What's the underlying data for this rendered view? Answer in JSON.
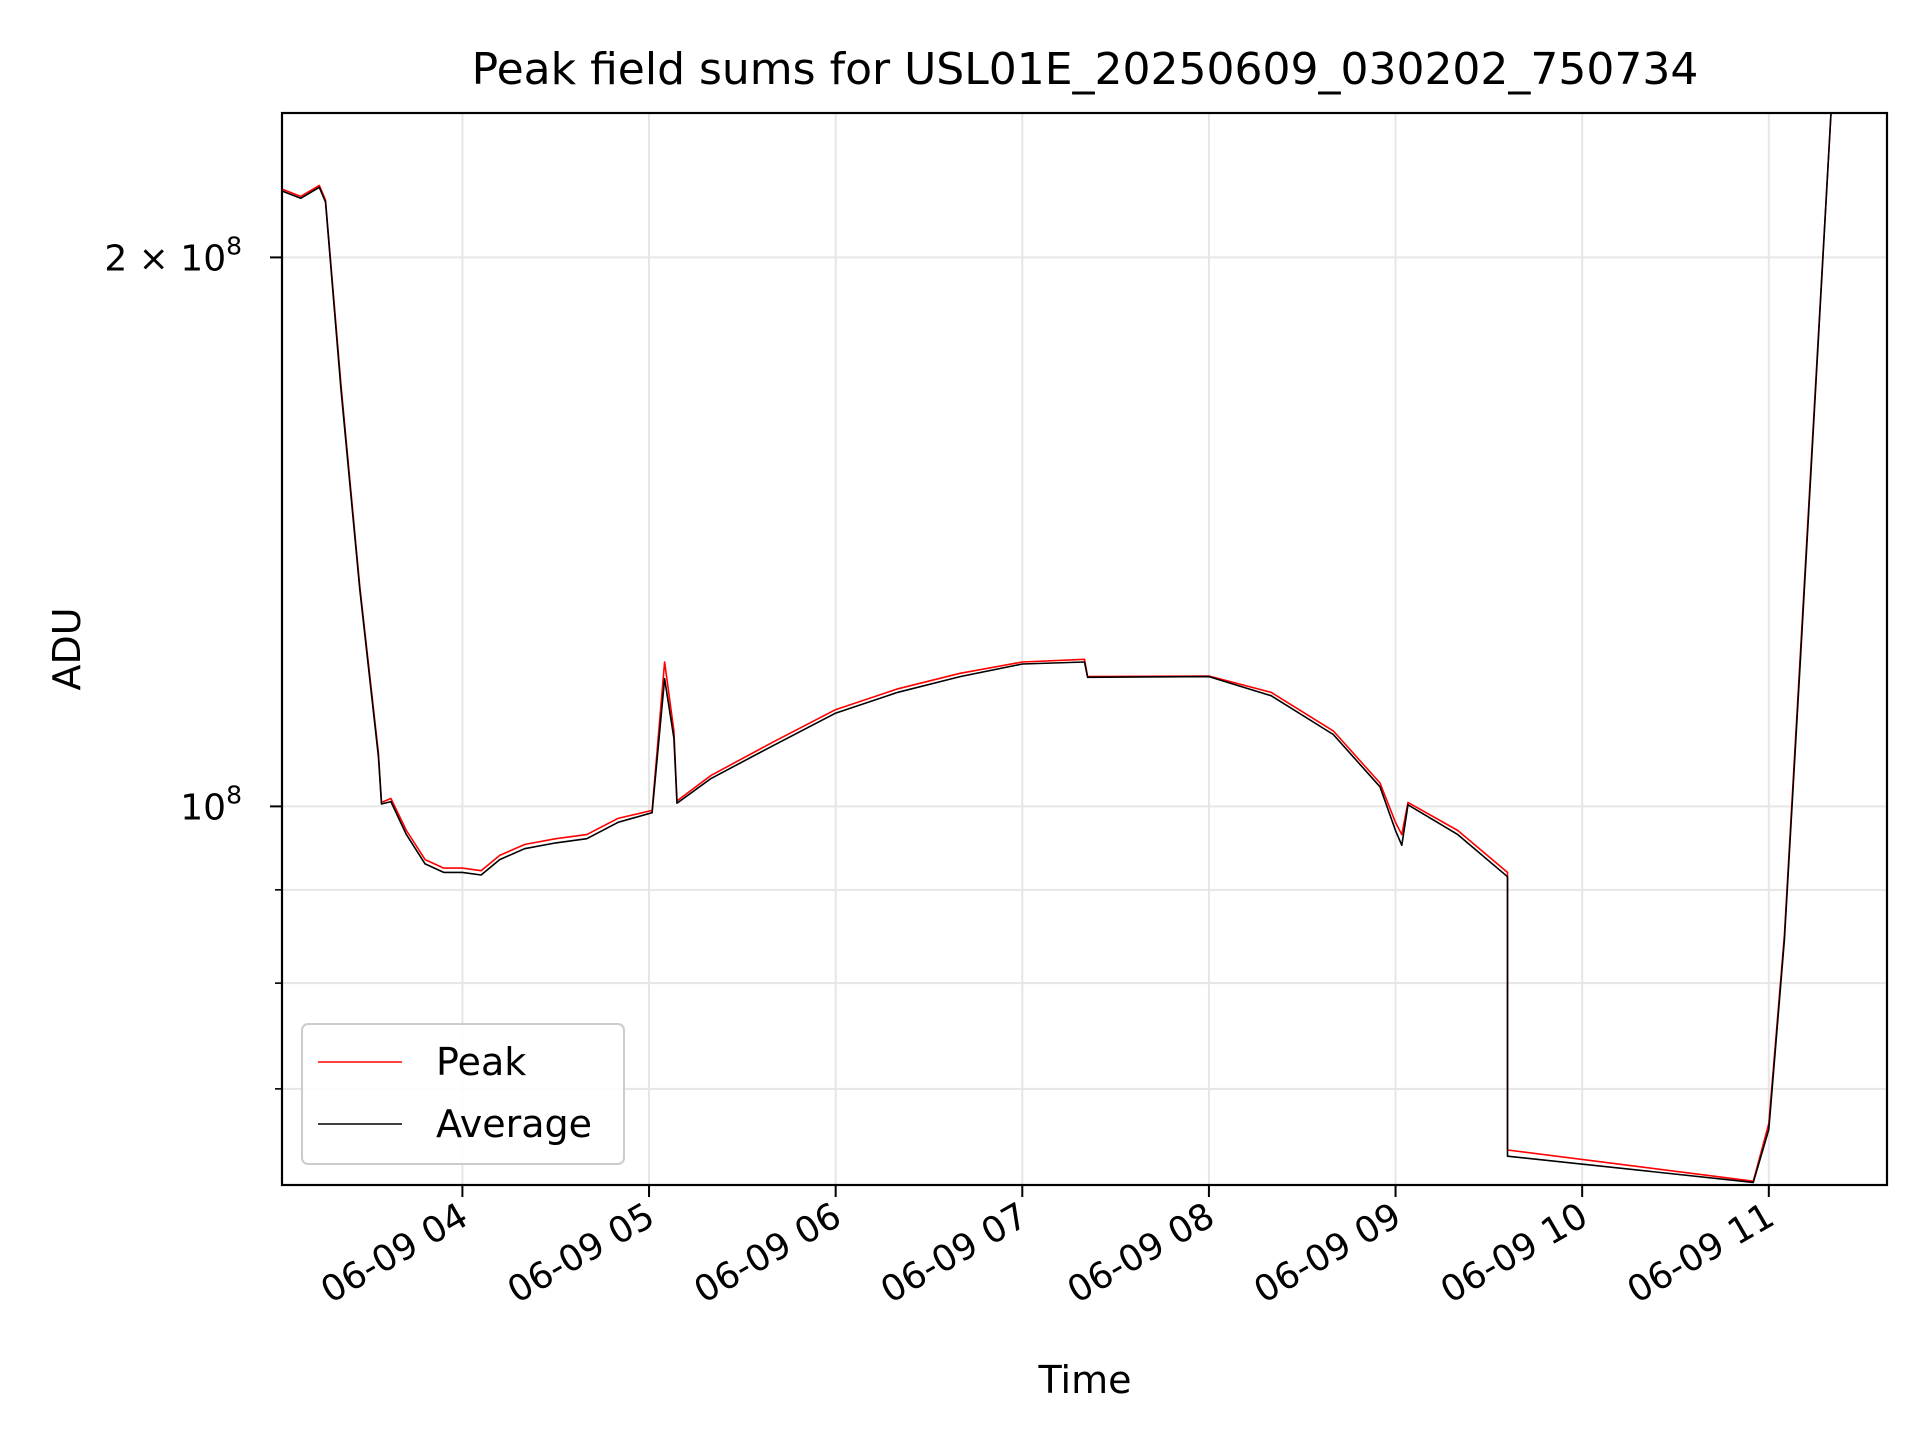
{
  "chart_data": {
    "type": "line",
    "title": "Peak field sums for USL01E_20250609_030202_750734",
    "xlabel": "Time",
    "ylabel": "ADU",
    "y_scale": "log",
    "ylim": [
      62000000,
      240000000
    ],
    "xlim": [
      "2025-06-09 03:02",
      "2025-06-09 11:38"
    ],
    "grid": true,
    "legend_position": "lower-left",
    "x_ticks": [
      "06-09 04",
      "06-09 05",
      "06-09 06",
      "06-09 07",
      "06-09 08",
      "06-09 09",
      "06-09 10",
      "06-09 11"
    ],
    "x_tick_times": [
      "2025-06-09 04:00",
      "2025-06-09 05:00",
      "2025-06-09 06:00",
      "2025-06-09 07:00",
      "2025-06-09 08:00",
      "2025-06-09 09:00",
      "2025-06-09 10:00",
      "2025-06-09 11:00"
    ],
    "y_ticks": [
      {
        "value": 200000000,
        "label": "2 × 10",
        "exp": "8"
      },
      {
        "value": 100000000,
        "label": "10",
        "exp": "8"
      }
    ],
    "y_minor_ticks": [
      60000000,
      70000000,
      80000000,
      90000000
    ],
    "colors": {
      "Peak": "#ff0000",
      "Average": "#000000"
    },
    "series": [
      {
        "name": "Peak",
        "color": "#ff0000",
        "points": [
          [
            "2025-06-09 03:02",
            218000000
          ],
          [
            "2025-06-09 03:08",
            216000000
          ],
          [
            "2025-06-09 03:14",
            219000000
          ],
          [
            "2025-06-09 03:16",
            215000000
          ],
          [
            "2025-06-09 03:21",
            170000000
          ],
          [
            "2025-06-09 03:27",
            132000000
          ],
          [
            "2025-06-09 03:33",
            107000000
          ],
          [
            "2025-06-09 03:34",
            100500000
          ],
          [
            "2025-06-09 03:37",
            101000000
          ],
          [
            "2025-06-09 03:42",
            97000000
          ],
          [
            "2025-06-09 03:48",
            93500000
          ],
          [
            "2025-06-09 03:54",
            92500000
          ],
          [
            "2025-06-09 04:00",
            92500000
          ],
          [
            "2025-06-09 04:06",
            92200000
          ],
          [
            "2025-06-09 04:12",
            94000000
          ],
          [
            "2025-06-09 04:20",
            95300000
          ],
          [
            "2025-06-09 04:30",
            96000000
          ],
          [
            "2025-06-09 04:40",
            96500000
          ],
          [
            "2025-06-09 04:50",
            98500000
          ],
          [
            "2025-06-09 05:01",
            99500000
          ],
          [
            "2025-06-09 05:05",
            120000000
          ],
          [
            "2025-06-09 05:08",
            110000000
          ],
          [
            "2025-06-09 05:09",
            100700000
          ],
          [
            "2025-06-09 05:20",
            104000000
          ],
          [
            "2025-06-09 05:40",
            108500000
          ],
          [
            "2025-06-09 06:00",
            113000000
          ],
          [
            "2025-06-09 06:20",
            116000000
          ],
          [
            "2025-06-09 06:40",
            118300000
          ],
          [
            "2025-06-09 07:00",
            120000000
          ],
          [
            "2025-06-09 07:20",
            120400000
          ],
          [
            "2025-06-09 07:21",
            117800000
          ],
          [
            "2025-06-09 08:00",
            117900000
          ],
          [
            "2025-06-09 08:20",
            115500000
          ],
          [
            "2025-06-09 08:40",
            110000000
          ],
          [
            "2025-06-09 08:55",
            103000000
          ],
          [
            "2025-06-09 09:00",
            98000000
          ],
          [
            "2025-06-09 09:02",
            96500000
          ],
          [
            "2025-06-09 09:04",
            100500000
          ],
          [
            "2025-06-09 09:20",
            97000000
          ],
          [
            "2025-06-09 09:36",
            92000000
          ],
          [
            "2025-06-09 09:36",
            64800000
          ],
          [
            "2025-06-09 10:55",
            62300000
          ],
          [
            "2025-06-09 11:00",
            67000000
          ],
          [
            "2025-06-09 11:05",
            85000000
          ],
          [
            "2025-06-09 11:10",
            120000000
          ],
          [
            "2025-06-09 11:15",
            170000000
          ],
          [
            "2025-06-09 11:20",
            240000000
          ]
        ]
      },
      {
        "name": "Average",
        "color": "#000000",
        "points": [
          [
            "2025-06-09 03:02",
            217500000
          ],
          [
            "2025-06-09 03:08",
            215500000
          ],
          [
            "2025-06-09 03:14",
            218500000
          ],
          [
            "2025-06-09 03:16",
            214500000
          ],
          [
            "2025-06-09 03:21",
            169000000
          ],
          [
            "2025-06-09 03:27",
            131500000
          ],
          [
            "2025-06-09 03:33",
            106500000
          ],
          [
            "2025-06-09 03:34",
            100300000
          ],
          [
            "2025-06-09 03:37",
            100600000
          ],
          [
            "2025-06-09 03:42",
            96500000
          ],
          [
            "2025-06-09 03:48",
            93000000
          ],
          [
            "2025-06-09 03:54",
            92000000
          ],
          [
            "2025-06-09 04:00",
            92000000
          ],
          [
            "2025-06-09 04:06",
            91700000
          ],
          [
            "2025-06-09 04:12",
            93500000
          ],
          [
            "2025-06-09 04:20",
            94800000
          ],
          [
            "2025-06-09 04:30",
            95500000
          ],
          [
            "2025-06-09 04:40",
            96000000
          ],
          [
            "2025-06-09 04:50",
            98000000
          ],
          [
            "2025-06-09 05:01",
            99200000
          ],
          [
            "2025-06-09 05:05",
            117500000
          ],
          [
            "2025-06-09 05:08",
            109000000
          ],
          [
            "2025-06-09 05:09",
            100400000
          ],
          [
            "2025-06-09 05:20",
            103600000
          ],
          [
            "2025-06-09 05:40",
            108000000
          ],
          [
            "2025-06-09 06:00",
            112500000
          ],
          [
            "2025-06-09 06:20",
            115500000
          ],
          [
            "2025-06-09 06:40",
            117800000
          ],
          [
            "2025-06-09 07:00",
            119700000
          ],
          [
            "2025-06-09 07:20",
            120000000
          ],
          [
            "2025-06-09 07:21",
            117700000
          ],
          [
            "2025-06-09 08:00",
            117800000
          ],
          [
            "2025-06-09 08:20",
            115000000
          ],
          [
            "2025-06-09 08:40",
            109500000
          ],
          [
            "2025-06-09 08:55",
            102500000
          ],
          [
            "2025-06-09 09:00",
            97000000
          ],
          [
            "2025-06-09 09:02",
            95200000
          ],
          [
            "2025-06-09 09:04",
            100200000
          ],
          [
            "2025-06-09 09:20",
            96500000
          ],
          [
            "2025-06-09 09:36",
            91500000
          ],
          [
            "2025-06-09 09:36",
            64300000
          ],
          [
            "2025-06-09 10:55",
            62200000
          ],
          [
            "2025-06-09 11:00",
            66500000
          ],
          [
            "2025-06-09 11:05",
            84500000
          ],
          [
            "2025-06-09 11:10",
            119000000
          ],
          [
            "2025-06-09 11:15",
            169000000
          ],
          [
            "2025-06-09 11:20",
            240000000
          ]
        ]
      }
    ]
  }
}
